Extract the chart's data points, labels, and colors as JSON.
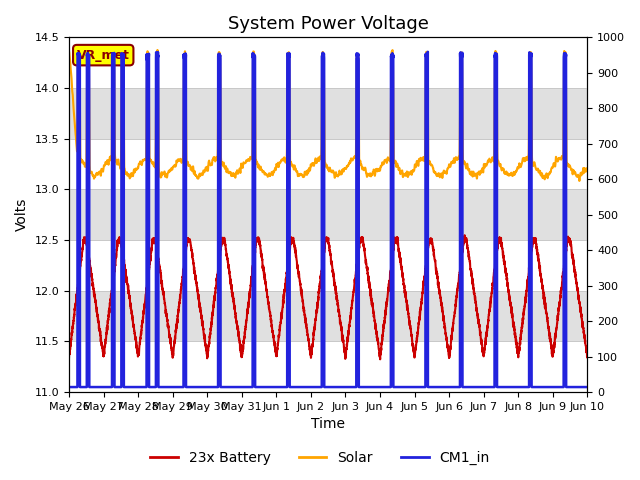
{
  "title": "System Power Voltage",
  "xlabel": "Time",
  "ylabel_left": "Volts",
  "ylabel_right": "",
  "ylim_left": [
    11.0,
    14.5
  ],
  "ylim_right": [
    0,
    1000
  ],
  "yticks_left": [
    11.0,
    11.5,
    12.0,
    12.5,
    13.0,
    13.5,
    14.0,
    14.5
  ],
  "yticks_right": [
    0,
    100,
    200,
    300,
    400,
    500,
    600,
    700,
    800,
    900,
    1000
  ],
  "xtick_labels": [
    "May 26",
    "May 27",
    "May 28",
    "May 29",
    "May 30",
    "May 31",
    "Jun 1",
    "Jun 2",
    "Jun 3",
    "Jun 4",
    "Jun 5",
    "Jun 6",
    "Jun 7",
    "Jun 8",
    "Jun 9",
    "Jun 10"
  ],
  "color_battery": "#cc0000",
  "color_solar": "#ffa500",
  "color_cm1": "#2222dd",
  "color_annotation_bg": "#ffff00",
  "color_annotation_border": "#8b0000",
  "annotation_text": "VR_met",
  "legend_labels": [
    "23x Battery",
    "Solar",
    "CM1_in"
  ],
  "grid_color": "#c8c8c8",
  "bg_color": "#ffffff",
  "plot_bg_color": "#ffffff",
  "band_color": "#e0e0e0",
  "title_fontsize": 13,
  "axis_fontsize": 10,
  "tick_fontsize": 8,
  "legend_fontsize": 10,
  "linewidth_battery": 1.5,
  "linewidth_solar": 1.5,
  "linewidth_cm1": 1.8
}
